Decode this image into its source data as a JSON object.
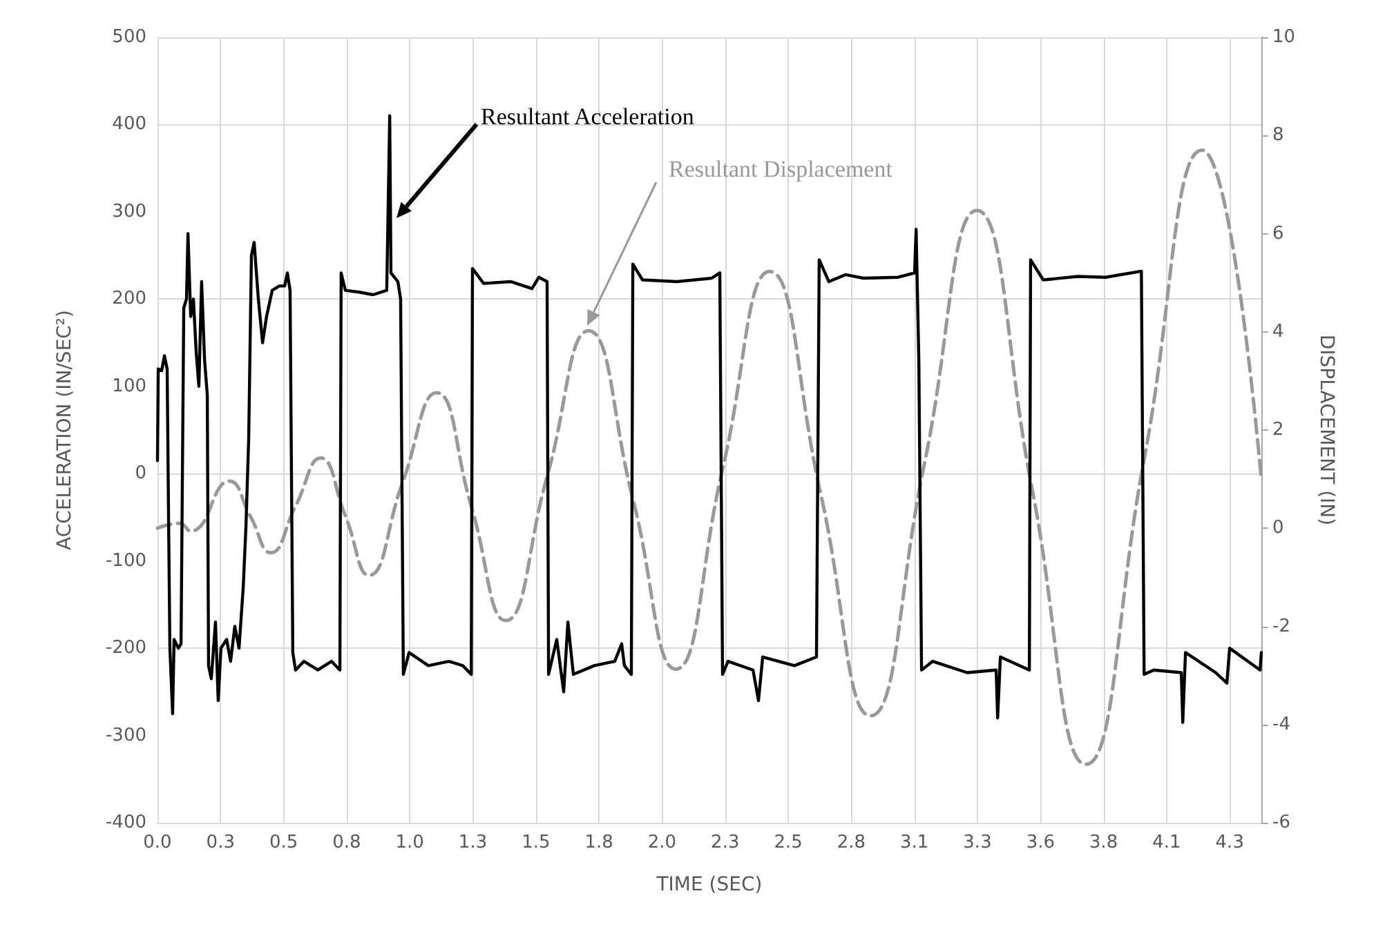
{
  "chart_data": {
    "type": "line",
    "xlabel": "TIME (SEC)",
    "ylabel": "ACCELERATION (IN/SEC²)",
    "y2label": "DISPLACEMENT (IN)",
    "xlim": [
      0,
      4.454
    ],
    "xticks": [
      {
        "value": 0,
        "label": "0.0"
      },
      {
        "value": 0.2545,
        "label": "0.3"
      },
      {
        "value": 0.509,
        "label": "0.5"
      },
      {
        "value": 0.7635,
        "label": "0.8"
      },
      {
        "value": 1.018,
        "label": "1.0"
      },
      {
        "value": 1.2725,
        "label": "1.3"
      },
      {
        "value": 1.527,
        "label": "1.5"
      },
      {
        "value": 1.7815,
        "label": "1.8"
      },
      {
        "value": 2.036,
        "label": "2.0"
      },
      {
        "value": 2.2905,
        "label": "2.3"
      },
      {
        "value": 2.545,
        "label": "2.5"
      },
      {
        "value": 2.7995,
        "label": "2.8"
      },
      {
        "value": 3.054,
        "label": "3.1"
      },
      {
        "value": 3.3085,
        "label": "3.3"
      },
      {
        "value": 3.563,
        "label": "3.6"
      },
      {
        "value": 3.8175,
        "label": "3.8"
      },
      {
        "value": 4.072,
        "label": "4.1"
      },
      {
        "value": 4.3265,
        "label": "4.3"
      }
    ],
    "ylim": [
      -400,
      500
    ],
    "yticks": [
      -400,
      -300,
      -200,
      -100,
      0,
      100,
      200,
      300,
      400,
      500
    ],
    "y2lim": [
      -6,
      10
    ],
    "y2ticks": [
      -6,
      -4,
      -2,
      0,
      2,
      4,
      6,
      8,
      10
    ],
    "grid": true,
    "marker": "none",
    "series": [
      {
        "color": "#000000",
        "line_style": "solid",
        "x": [
          0,
          0.003,
          0.017,
          0.028,
          0.039,
          0.045,
          0.05,
          0.061,
          0.067,
          0.084,
          0.095,
          0.106,
          0.117,
          0.123,
          0.134,
          0.145,
          0.156,
          0.167,
          0.178,
          0.19,
          0.201,
          0.206,
          0.217,
          0.234,
          0.245,
          0.256,
          0.279,
          0.295,
          0.312,
          0.329,
          0.346,
          0.357,
          0.368,
          0.379,
          0.39,
          0.407,
          0.424,
          0.44,
          0.463,
          0.491,
          0.513,
          0.524,
          0.535,
          0.546,
          0.557,
          0.591,
          0.647,
          0.702,
          0.736,
          0.741,
          0.758,
          0.814,
          0.87,
          0.925,
          0.937,
          0.942,
          0.97,
          0.981,
          0.992,
          1.015,
          1.093,
          1.176,
          1.232,
          1.266,
          1.271,
          1.316,
          1.427,
          1.511,
          1.539,
          1.572,
          1.578,
          1.611,
          1.639,
          1.656,
          1.678,
          1.762,
          1.845,
          1.873,
          1.884,
          1.912,
          1.918,
          1.957,
          2.096,
          2.236,
          2.269,
          2.28,
          2.302,
          2.403,
          2.425,
          2.442,
          2.57,
          2.659,
          2.67,
          2.709,
          2.776,
          2.848,
          2.988,
          3.055,
          3.061,
          3.072,
          3.083,
          3.128,
          3.267,
          3.384,
          3.39,
          3.401,
          3.518,
          3.523,
          3.574,
          3.713,
          3.825,
          3.97,
          3.981,
          4.02,
          4.131,
          4.137,
          4.148,
          4.27,
          4.315,
          4.326,
          4.449,
          4.454
        ],
        "values": [
          15,
          120,
          118,
          135,
          120,
          -60,
          -200,
          -275,
          -190,
          -200,
          -195,
          190,
          200,
          275,
          180,
          200,
          140,
          100,
          220,
          130,
          90,
          -220,
          -235,
          -170,
          -260,
          -200,
          -190,
          -215,
          -175,
          -200,
          -130,
          -60,
          40,
          250,
          265,
          200,
          150,
          180,
          210,
          215,
          215,
          230,
          210,
          -205,
          -225,
          -215,
          -225,
          -215,
          -225,
          230,
          210,
          208,
          205,
          210,
          410,
          230,
          220,
          200,
          -230,
          -205,
          -220,
          -215,
          -220,
          -230,
          235,
          218,
          220,
          212,
          225,
          220,
          -230,
          -190,
          -250,
          -170,
          -230,
          -220,
          -215,
          -195,
          -220,
          -230,
          240,
          222,
          220,
          224,
          230,
          -230,
          -215,
          -225,
          -260,
          -210,
          -220,
          -210,
          245,
          220,
          228,
          224,
          225,
          230,
          280,
          130,
          -225,
          -215,
          -228,
          -225,
          -280,
          -210,
          -225,
          245,
          222,
          226,
          225,
          232,
          -230,
          -225,
          -228,
          -285,
          -205,
          -228,
          -240,
          -200,
          -225,
          -205
        ]
      },
      {
        "color": "#999999",
        "axis": "y2",
        "line_style": "dashed",
        "x": [
          0,
          0.089,
          0.134,
          0.29,
          0.374,
          0.457,
          0.557,
          0.658,
          0.758,
          0.853,
          0.987,
          1.126,
          1.266,
          1.405,
          1.572,
          1.739,
          1.918,
          2.091,
          2.28,
          2.47,
          2.676,
          2.877,
          3.094,
          3.306,
          3.529,
          3.746,
          3.981,
          4.215,
          4.454
        ],
        "values": [
          0.0,
          0.1,
          -0.06,
          0.96,
          0.25,
          -0.5,
          0.45,
          1.43,
          0.25,
          -0.96,
          0.9,
          2.76,
          0.45,
          -1.88,
          1.05,
          4.02,
          0.6,
          -2.87,
          1.2,
          5.23,
          0.7,
          -3.82,
          1.3,
          6.47,
          0.8,
          -4.81,
          1.4,
          7.7,
          1.0
        ]
      }
    ],
    "annotations": [
      "Resultant Acceleration",
      "Resultant Displacement"
    ]
  }
}
